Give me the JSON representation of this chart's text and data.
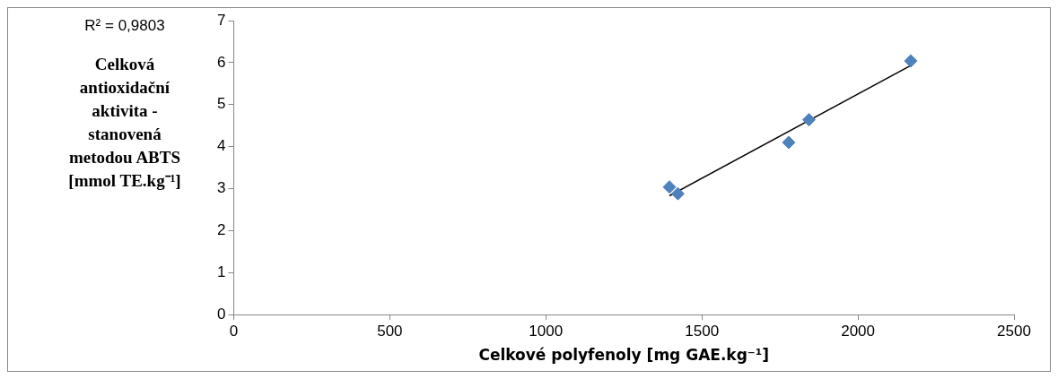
{
  "chart_data": {
    "type": "scatter",
    "xlabel": "Celkové polyfenoly [mg GAE.kg⁻¹]",
    "ylabel": "Celková antioxidační aktivita - stanovená metodou ABTS [mmol TE.kg⁻¹]",
    "annotations": [
      "R² = 0,9803"
    ],
    "xlim": [
      0,
      2500
    ],
    "xticks": [
      0,
      500,
      1000,
      1500,
      2000,
      2500
    ],
    "ylim": [
      0,
      7
    ],
    "yticks": [
      0,
      1,
      2,
      3,
      4,
      5,
      6,
      7
    ],
    "grid": false,
    "legend": false,
    "marker": "diamond",
    "series": [
      {
        "type": "scatter",
        "color": "#4f81bd",
        "x": [
          1396,
          1423,
          1778,
          1843,
          2169
        ],
        "values": [
          3.04,
          2.88,
          4.1,
          4.64,
          6.04
        ]
      },
      {
        "type": "line",
        "color": "#000000",
        "x": [
          1396,
          2169
        ],
        "values": [
          2.83,
          5.93
        ],
        "marker": "none"
      }
    ]
  }
}
